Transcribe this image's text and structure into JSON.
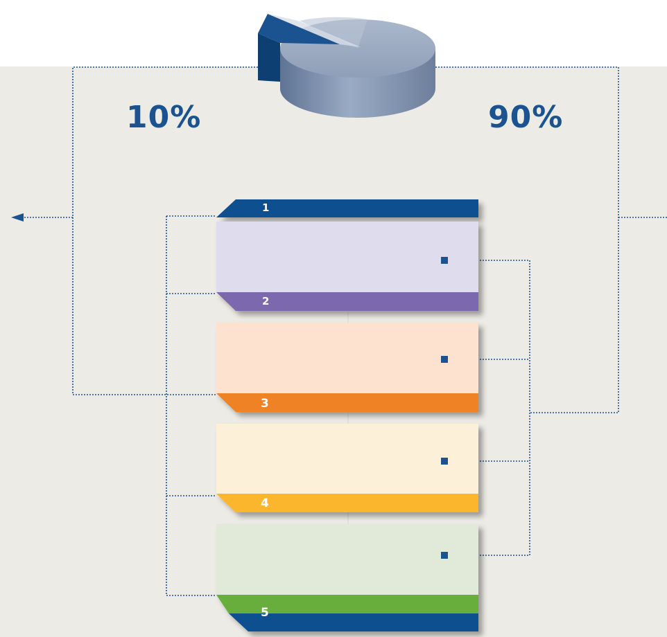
{
  "split": {
    "left_percent": "10%",
    "right_percent": "90%",
    "left_fraction": 0.1,
    "right_fraction": 0.9
  },
  "stack_labels": [
    "1",
    "2",
    "3",
    "4",
    "5"
  ],
  "colors": {
    "accent": "#1b5391",
    "background": "#edebe5",
    "band_1": "#0f4f8f",
    "band_2": "#7c68ad",
    "band_3": "#f08228",
    "band_4": "#fbb62e",
    "band_5": "#68ae3e",
    "panel_2": "#dfdced",
    "panel_3": "#fde3cf",
    "panel_4": "#fdf0d8",
    "panel_5": "#e1ead8",
    "pie_large": "#9aa9c0",
    "pie_small": "#0f4f8f"
  },
  "icons": {
    "arrow": "arrow-left-icon",
    "connector": "square-bullet-icon",
    "pie": "pie-chart-icon"
  }
}
